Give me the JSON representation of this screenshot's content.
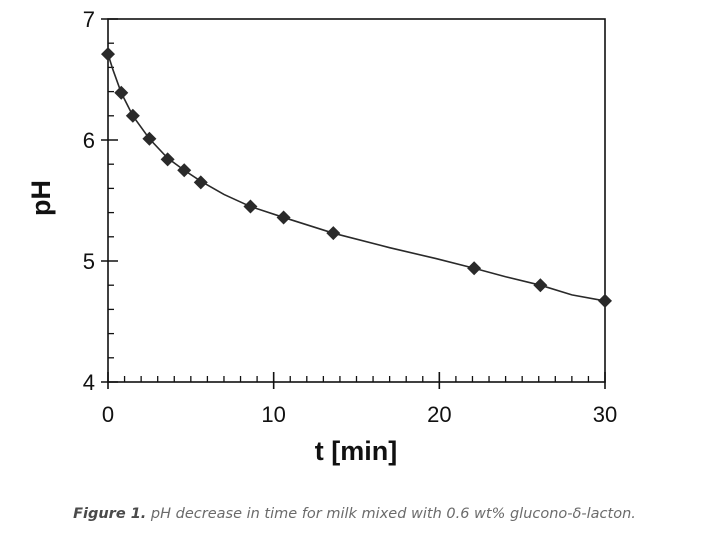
{
  "chart_data": {
    "type": "scatter",
    "title": "",
    "xlabel": "t [min]",
    "ylabel": "pH",
    "xlim": [
      0,
      30
    ],
    "ylim": [
      4,
      7
    ],
    "xticks": [
      0,
      10,
      20,
      30
    ],
    "yticks": [
      4,
      5,
      6,
      7
    ],
    "grid": false,
    "legend": "none",
    "marker": "diamond",
    "marker_color": "#2a2a2a",
    "line_color": "#2a2a2a",
    "series": [
      {
        "points": [
          {
            "x": 0.0,
            "y": 6.71
          },
          {
            "x": 0.8,
            "y": 6.39
          },
          {
            "x": 1.5,
            "y": 6.2
          },
          {
            "x": 2.5,
            "y": 6.01
          },
          {
            "x": 3.6,
            "y": 5.84
          },
          {
            "x": 4.6,
            "y": 5.75
          },
          {
            "x": 5.6,
            "y": 5.65
          },
          {
            "x": 8.6,
            "y": 5.45
          },
          {
            "x": 10.6,
            "y": 5.36
          },
          {
            "x": 13.6,
            "y": 5.23
          },
          {
            "x": 22.1,
            "y": 4.94
          },
          {
            "x": 26.1,
            "y": 4.8
          },
          {
            "x": 30.0,
            "y": 4.67
          }
        ]
      }
    ],
    "fit_curve": [
      {
        "x": 0.0,
        "y": 6.71
      },
      {
        "x": 0.3,
        "y": 6.58
      },
      {
        "x": 0.8,
        "y": 6.39
      },
      {
        "x": 1.5,
        "y": 6.2
      },
      {
        "x": 2.5,
        "y": 6.01
      },
      {
        "x": 3.6,
        "y": 5.85
      },
      {
        "x": 4.6,
        "y": 5.75
      },
      {
        "x": 5.6,
        "y": 5.66
      },
      {
        "x": 7.0,
        "y": 5.55
      },
      {
        "x": 8.6,
        "y": 5.45
      },
      {
        "x": 10.6,
        "y": 5.36
      },
      {
        "x": 13.6,
        "y": 5.23
      },
      {
        "x": 17.0,
        "y": 5.11
      },
      {
        "x": 19.8,
        "y": 5.02
      },
      {
        "x": 22.1,
        "y": 4.94
      },
      {
        "x": 24.0,
        "y": 4.87
      },
      {
        "x": 26.1,
        "y": 4.8
      },
      {
        "x": 28.0,
        "y": 4.72
      },
      {
        "x": 30.0,
        "y": 4.67
      }
    ]
  },
  "caption": {
    "lead": "Figure 1.",
    "text": " pH decrease in time for milk mixed with 0.6 wt% glucono-δ-lacton."
  }
}
